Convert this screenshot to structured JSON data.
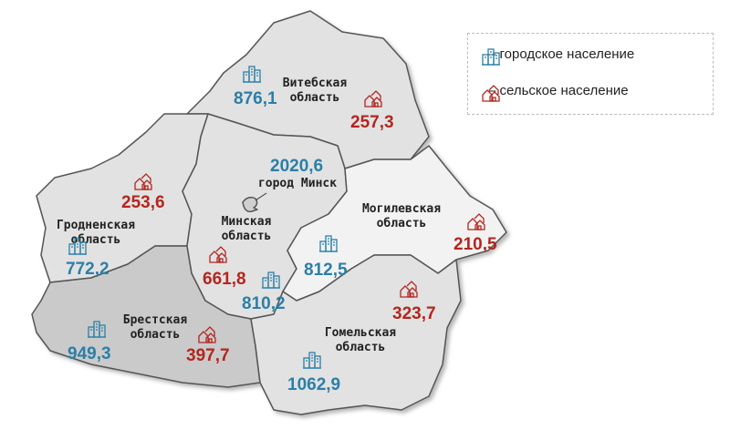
{
  "legend": {
    "urban": "– городское население",
    "rural": "– сельское население"
  },
  "colors": {
    "urban": "#2b7fa8",
    "rural": "#b3261e",
    "region": "#e2e2e2",
    "brest": "#cacaca",
    "mogilev": "#f2f2f2"
  },
  "regions": {
    "vitebsk": {
      "name1": "Витебская",
      "name2": "область",
      "urban": "876,1",
      "rural": "257,3"
    },
    "grodno": {
      "name1": "Гродненская",
      "name2": "область",
      "urban": "772,2",
      "rural": "253,6"
    },
    "minsk_region": {
      "name1": "Минская",
      "name2": "область",
      "urban": "810,2",
      "rural": "661,8"
    },
    "minsk_city": {
      "name": "город Минск",
      "urban": "2020,6"
    },
    "mogilev": {
      "name1": "Могилевская",
      "name2": "область",
      "urban": "812,5",
      "rural": "210,5"
    },
    "brest": {
      "name1": "Брестская",
      "name2": "область",
      "urban": "949,3",
      "rural": "397,7"
    },
    "gomel": {
      "name1": "Гомельская",
      "name2": "область",
      "urban": "1062,9",
      "rural": "323,7"
    }
  }
}
